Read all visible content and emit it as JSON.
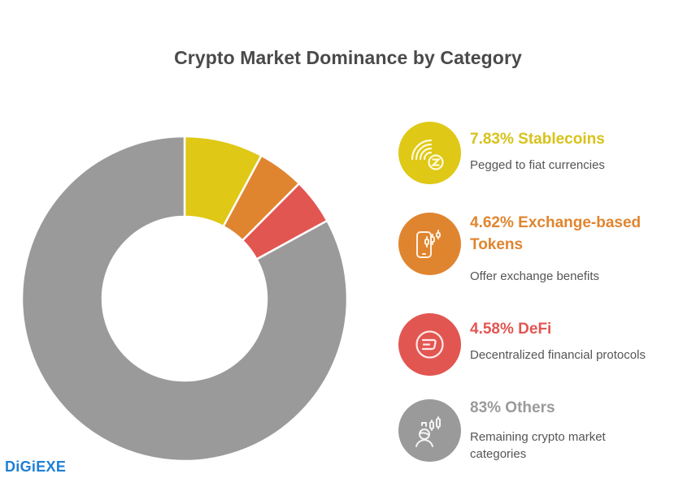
{
  "title": "Crypto Market Dominance by Category",
  "brand": "DiGiEXE",
  "chart_data": {
    "type": "pie",
    "variant": "donut",
    "title": "Crypto Market Dominance by Category",
    "categories": [
      "Stablecoins",
      "Exchange-based Tokens",
      "DeFi",
      "Others"
    ],
    "values": [
      7.83,
      4.62,
      4.58,
      83
    ],
    "unit": "%",
    "colors": [
      "#dfc816",
      "#e0852f",
      "#e25652",
      "#9a9a9a"
    ],
    "start_angle": "12 o'clock, clockwise",
    "legend_position": "right",
    "descriptions": [
      "Pegged to fiat currencies",
      "Offer exchange benefits",
      "Decentralized financial protocols",
      "Remaining crypto market categories"
    ]
  },
  "legend": [
    {
      "label": "7.83% Stablecoins",
      "description": "Pegged to fiat currencies",
      "icon": "stablecoin-signal-icon",
      "color": "#dfc816"
    },
    {
      "label": "4.62% Exchange-based Tokens",
      "label_line1": "4.62% Exchange-based",
      "label_line2": "Tokens",
      "description": "Offer exchange benefits",
      "icon": "mobile-trading-icon",
      "color": "#e0852f"
    },
    {
      "label": "4.58% DeFi",
      "description": "Decentralized financial protocols",
      "icon": "dash-coin-icon",
      "color": "#e25652"
    },
    {
      "label": "83% Others",
      "description": "Remaining crypto market categories",
      "icon": "trader-chart-icon",
      "color": "#9a9a9a"
    }
  ]
}
